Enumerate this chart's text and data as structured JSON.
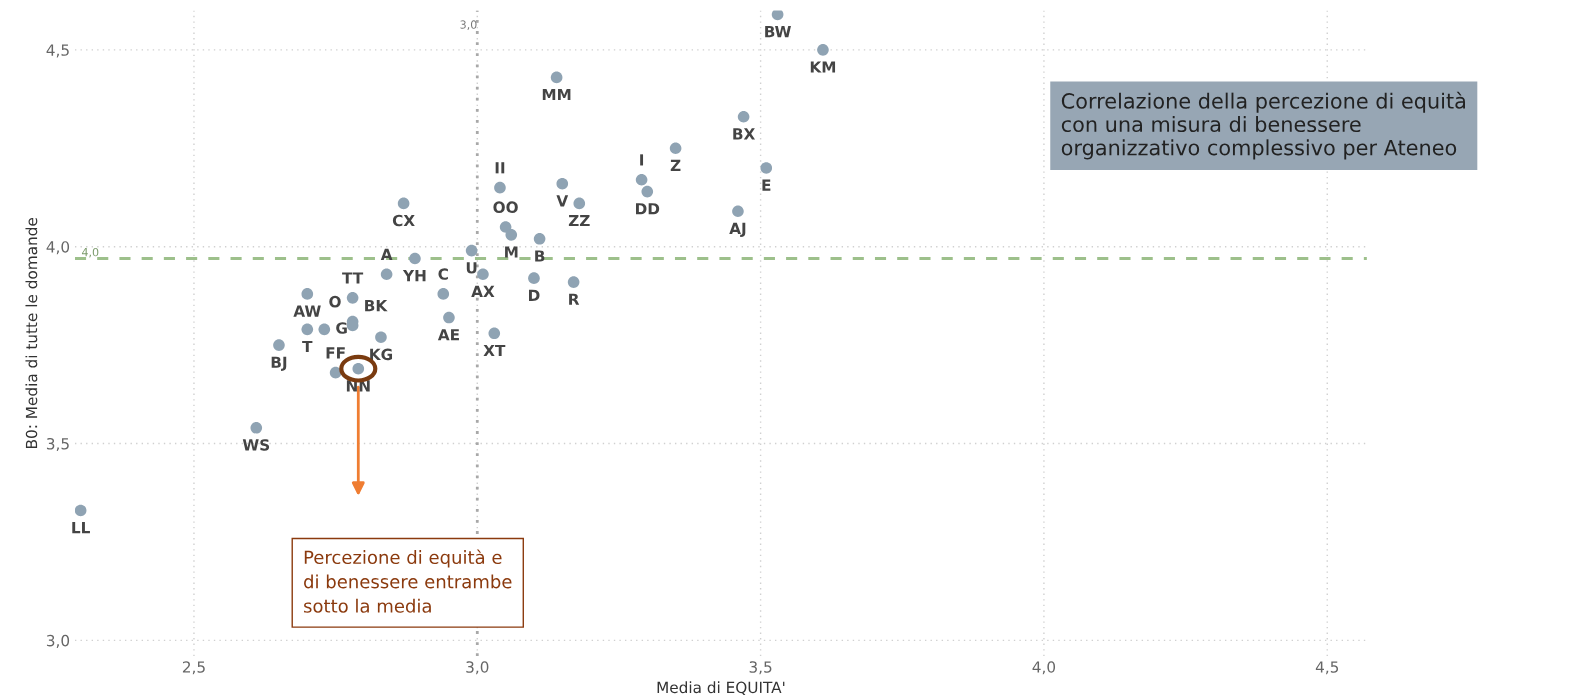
{
  "chart_data": {
    "type": "scatter",
    "xlabel": "Media di EQUITA'",
    "ylabel": "B0: Media di tutte le domande",
    "x": [
      3.53,
      3.61,
      3.14,
      3.47,
      3.35,
      3.29,
      3.3,
      3.51,
      3.46,
      3.04,
      3.15,
      3.18,
      3.05,
      3.06,
      3.11,
      2.99,
      3.01,
      3.1,
      3.17,
      3.03,
      2.87,
      2.89,
      2.84,
      2.94,
      2.95,
      2.7,
      2.7,
      2.73,
      2.65,
      2.78,
      2.78,
      2.78,
      2.83,
      2.75,
      2.79,
      2.61,
      2.3
    ],
    "values": [
      4.59,
      4.5,
      4.43,
      4.33,
      4.25,
      4.17,
      4.14,
      4.2,
      4.09,
      4.15,
      4.16,
      4.11,
      4.05,
      4.03,
      4.02,
      3.99,
      3.93,
      3.92,
      3.91,
      3.78,
      4.11,
      3.97,
      3.93,
      3.88,
      3.82,
      3.88,
      3.79,
      3.79,
      3.75,
      3.87,
      3.81,
      3.8,
      3.77,
      3.68,
      3.69,
      3.54,
      3.33
    ],
    "value_labels": [
      "BW",
      "KM",
      "MM",
      "BX",
      "Z",
      "I",
      "DD",
      "E",
      "AJ",
      "II",
      "V",
      "ZZ",
      "OO",
      "M",
      "B",
      "U",
      "AX",
      "D",
      "R",
      "XT",
      "CX",
      "YH",
      "A",
      "C",
      "AE",
      "AW",
      "T",
      "G",
      "BJ",
      "TT",
      "O",
      "BK",
      "KG",
      "FF",
      "NN",
      "WS",
      "LL"
    ],
    "color": "#8fa3b3",
    "marker": "circle",
    "xlim": [
      2.29,
      4.57
    ],
    "ylim": [
      2.96,
      4.6
    ],
    "xticks": [
      {
        "value": 2.5,
        "label": "2,5"
      },
      {
        "value": 3.0,
        "label": "3,0"
      },
      {
        "value": 3.5,
        "label": "3,5"
      },
      {
        "value": 4.0,
        "label": "4,0"
      },
      {
        "value": 4.5,
        "label": "4,5"
      }
    ],
    "yticks": [
      {
        "value": 3.0,
        "label": "3,0"
      },
      {
        "value": 3.5,
        "label": "3,5"
      },
      {
        "value": 4.0,
        "label": "4,0"
      },
      {
        "value": 4.5,
        "label": "4,5"
      }
    ],
    "grid": true,
    "ref_lines": [
      {
        "axis": "x",
        "value": 3.0,
        "label": "3,0",
        "color": "#a8a8a8",
        "line_style": "dotted"
      },
      {
        "axis": "y",
        "value": 3.97,
        "label": "4,0",
        "color": "#9dc08b",
        "line_style": "dashed"
      }
    ],
    "annotations": [
      "Correlazione della percezione di equità\ncon una misura di benessere\norganizzativo complessivo per Ateneo",
      "Percezione di equità e\ndi benessere entrambe\nsotto la media"
    ]
  }
}
